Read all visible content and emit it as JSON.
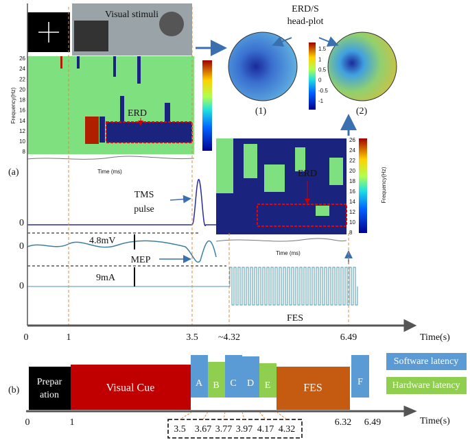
{
  "panel_a": {
    "label": "(a)",
    "stimulus": {
      "title": "Visual stimuli"
    },
    "spectrogram_1": {
      "y_label": "Frequency(Hz)",
      "yticks": [
        "26",
        "24",
        "22",
        "20",
        "18",
        "16",
        "14",
        "12",
        "10",
        "8"
      ],
      "annotation": "ERD",
      "x_label": "Time (ms)"
    },
    "headplot": {
      "title_lines": [
        "ERD/S",
        "head-plot"
      ],
      "colorbar_ticks": [
        "1.5",
        "1",
        "0.5",
        "0",
        "-0.5",
        "-1"
      ],
      "labels": [
        "(1)",
        "(2)"
      ]
    },
    "spectrogram_2": {
      "y_label": "Frequency(Hz)",
      "yticks": [
        "26",
        "24",
        "22",
        "20",
        "18",
        "16",
        "14",
        "12",
        "10",
        "8"
      ],
      "annotation": "ERD",
      "x_label": "Time (ms)"
    },
    "traces": {
      "zero_labels": [
        "0",
        "0",
        "0"
      ],
      "tms": [
        "TMS",
        "pulse"
      ],
      "mep": "MEP",
      "mep_amplitude": "4.8mV",
      "fes_amplitude": "9mA",
      "fes": "FES"
    },
    "time_axis": {
      "ticks": [
        "0",
        "1",
        "3.5",
        "~4.32",
        "6.49"
      ],
      "label": "Time(s)"
    }
  },
  "panel_b": {
    "label": "(b)",
    "blocks": [
      "Prepar",
      "ation",
      "Visual Cue",
      "A",
      "B",
      "C",
      "D",
      "E",
      "FES",
      "F"
    ],
    "legend": [
      "Software latency",
      "Hardware latency"
    ],
    "time_axis": {
      "ticks": [
        "0",
        "1",
        "6.32",
        "6.49"
      ],
      "label": "Time(s)"
    },
    "latencies": [
      "3.5",
      "3.67",
      "3.77",
      "3.97",
      "4.17",
      "4.32"
    ]
  }
}
